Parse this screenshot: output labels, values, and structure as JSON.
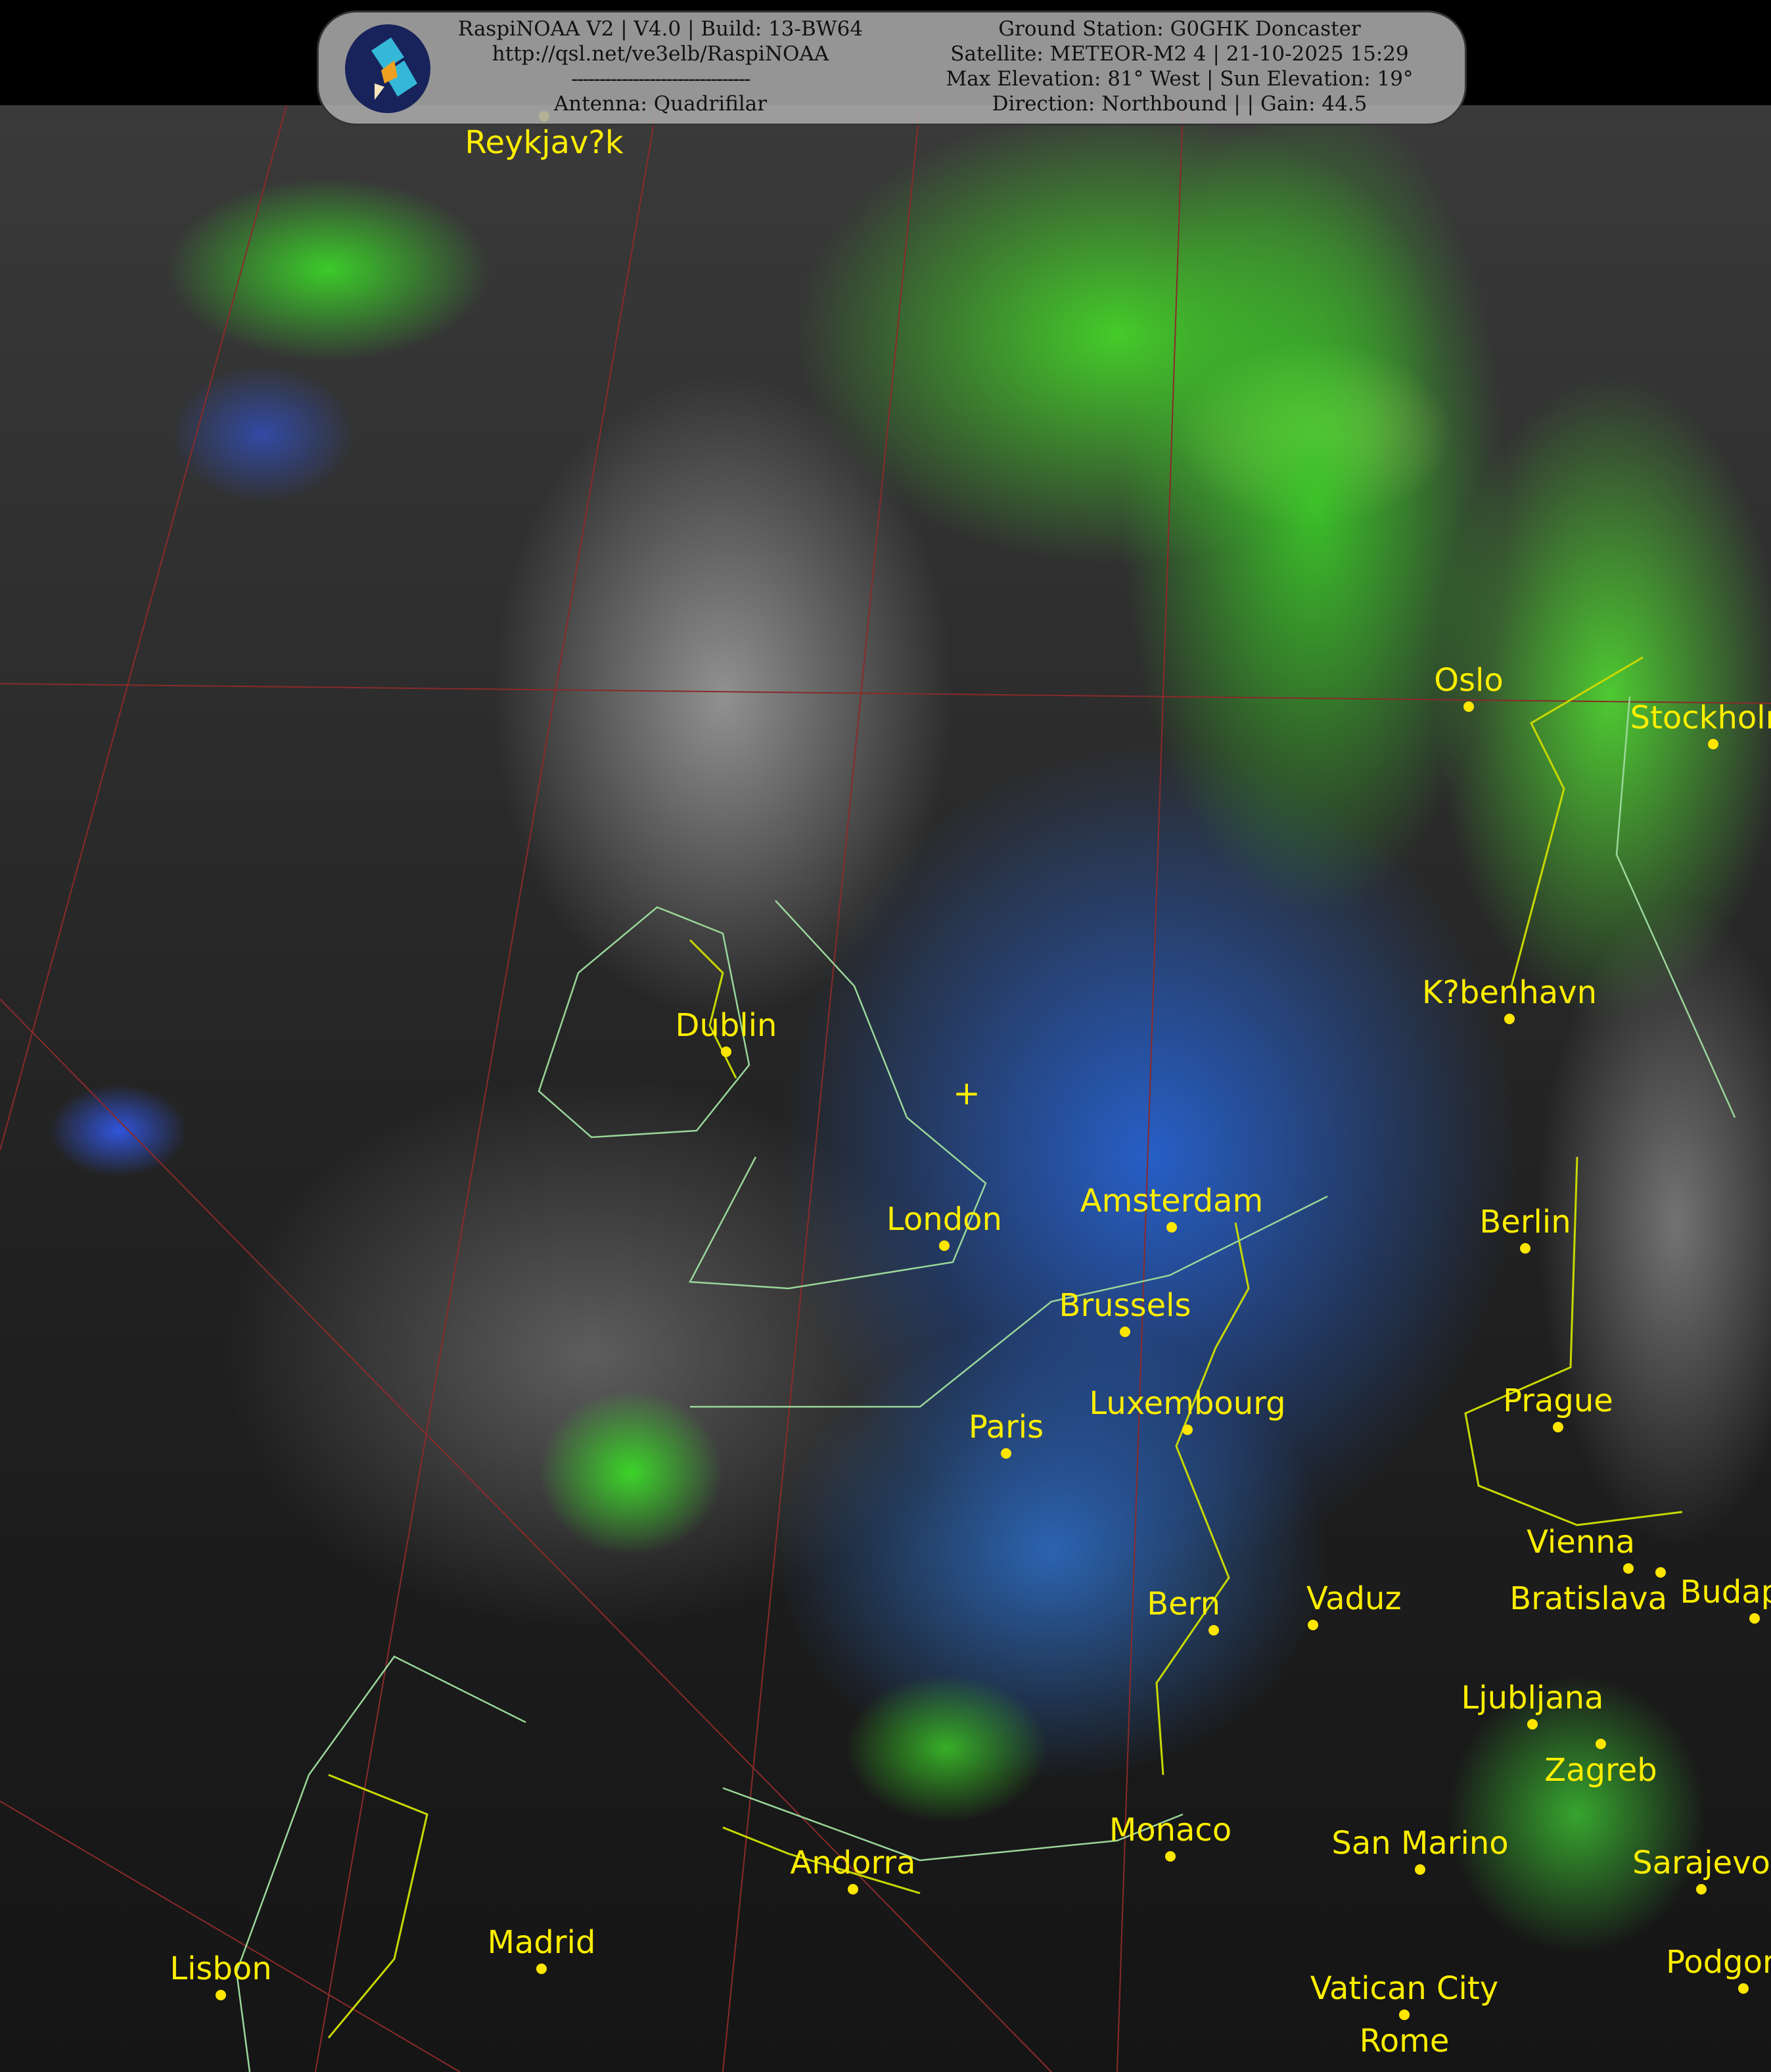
{
  "header": {
    "left_lines": [
      "RaspiNOAA V2 | V4.0 | Build: 13-BW64",
      "http://qsl.net/ve3elb/RaspiNOAA",
      "--------------------------------",
      "Antenna: Quadrifilar"
    ],
    "right_lines": [
      "Ground Station: G0GHK Doncaster",
      "Satellite: METEOR-M2 4 | 21-10-2025 15:29",
      "Max Elevation: 81° West | Sun Elevation: 19°",
      "Direction: Northbound | | Gain: 44.5"
    ],
    "logo_icon": "satellite-icon"
  },
  "cities": [
    "Reykjav?k",
    "Oslo",
    "Stockholm",
    "K?benhavn",
    "Dublin",
    "London",
    "Amsterdam",
    "Berlin",
    "Brussels",
    "Luxembourg",
    "Paris",
    "Prague",
    "Vienna",
    "Bratislava",
    "Budapest",
    "Bern",
    "Vaduz",
    "Ljubljana",
    "Zagreb",
    "Monaco",
    "San Marino",
    "Andorra",
    "Madrid",
    "Lisbon",
    "Vatican City",
    "Rome",
    "Sarajevo",
    "Podgorica"
  ],
  "colors": {
    "label": "#ffee00",
    "border": "#c8d800",
    "coast": "#9ad79a"
  }
}
